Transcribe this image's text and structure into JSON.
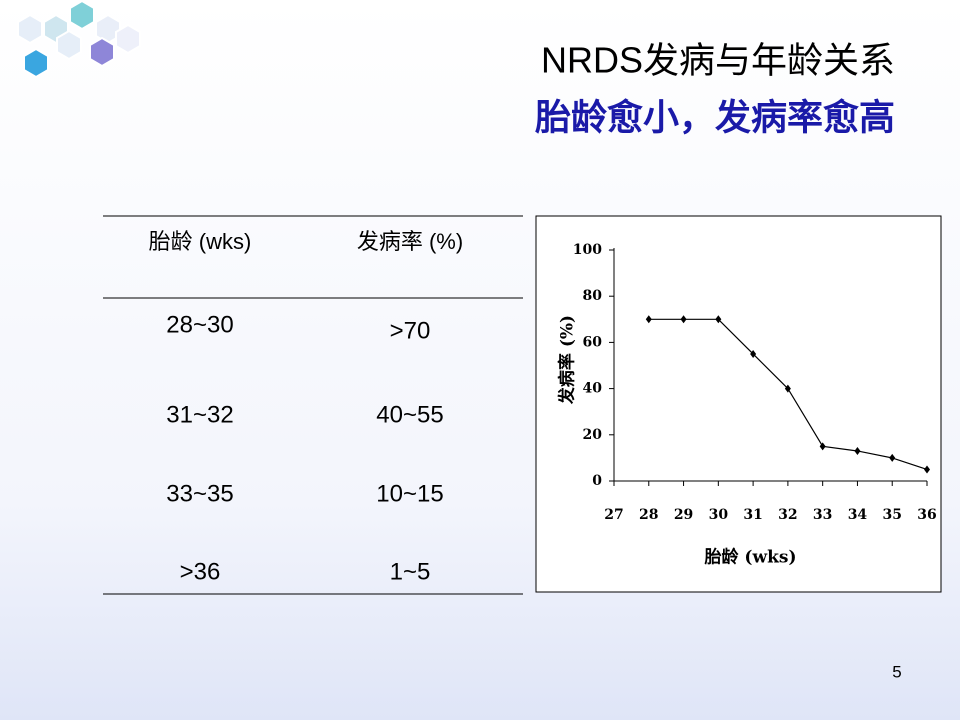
{
  "header": {
    "title": "NRDS发病与年龄关系",
    "subtitle": "胎龄愈小，发病率愈高"
  },
  "table": {
    "columns": [
      "胎龄 (wks)",
      "发病率 (%)"
    ],
    "rows": [
      [
        "28~30",
        ">70"
      ],
      [
        "31~32",
        "40~55"
      ],
      [
        "33~35",
        "10~15"
      ],
      [
        ">36",
        "1~5"
      ]
    ]
  },
  "chart_data": {
    "type": "line",
    "x": [
      28,
      29,
      30,
      31,
      32,
      33,
      34,
      35,
      36
    ],
    "series": [
      {
        "color": "#000000",
        "values": [
          70,
          70,
          70,
          55,
          40,
          15,
          13,
          10,
          5
        ]
      }
    ],
    "xlim": [
      27,
      36
    ],
    "xticks": [
      27,
      28,
      29,
      30,
      31,
      32,
      33,
      34,
      35,
      36
    ],
    "ylim": [
      0,
      100
    ],
    "yticks": [
      0,
      20,
      40,
      60,
      80,
      100
    ],
    "xlabel": "胎龄 (wks)",
    "ylabel": "发病率 (%)"
  },
  "page_number": "5"
}
